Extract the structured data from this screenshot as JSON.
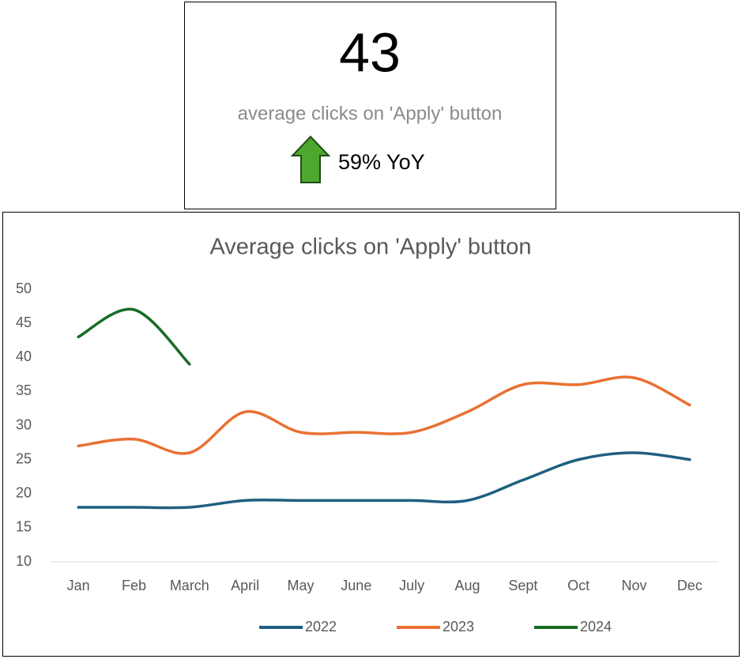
{
  "kpi": {
    "value": 43,
    "label": "average clicks on 'Apply' button",
    "change_label": "59% YoY"
  },
  "chart_data": {
    "type": "line",
    "title": "Average clicks on 'Apply' button",
    "categories": [
      "Jan",
      "Feb",
      "March",
      "April",
      "May",
      "June",
      "July",
      "Aug",
      "Sept",
      "Oct",
      "Nov",
      "Dec"
    ],
    "series": [
      {
        "name": "2022",
        "color": "#1f5f82",
        "values": [
          18,
          18,
          18,
          19,
          19,
          19,
          19,
          19,
          22,
          25,
          26,
          25
        ]
      },
      {
        "name": "2023",
        "color": "#e97132",
        "values": [
          27,
          28,
          26,
          32,
          29,
          29,
          29,
          32,
          36,
          36,
          37,
          33
        ]
      },
      {
        "name": "2024",
        "color": "#196b24",
        "values": [
          43,
          47,
          39,
          null,
          null,
          null,
          null,
          null,
          null,
          null,
          null,
          null
        ]
      }
    ],
    "ylim": [
      10,
      50
    ],
    "yticks": [
      10,
      15,
      20,
      25,
      30,
      35,
      40,
      45,
      50
    ],
    "legend": "bottom"
  }
}
